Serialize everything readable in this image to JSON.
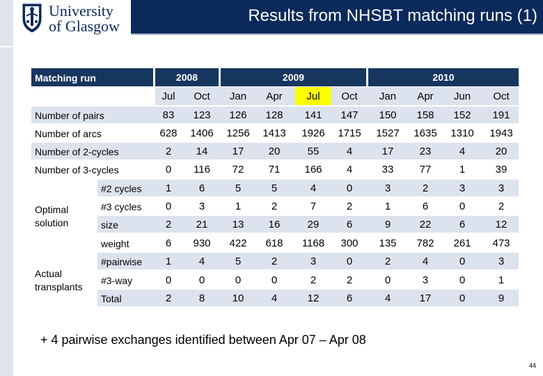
{
  "header": {
    "title": "Results from NHSBT matching runs (1)",
    "logo": {
      "line1": "University",
      "line2": "of Glasgow",
      "icon": "university-crest-icon"
    }
  },
  "table": {
    "corner_label": "Matching run",
    "years": [
      "2008",
      "2009",
      "2010"
    ],
    "months": [
      "Jul",
      "Oct",
      "Jan",
      "Apr",
      "Jul",
      "Oct",
      "Jan",
      "Apr",
      "Jun",
      "Oct"
    ],
    "highlight_month": "Jul (2009)",
    "rows": [
      {
        "label": "Number of pairs",
        "values": [
          "83",
          "123",
          "126",
          "128",
          "141",
          "147",
          "150",
          "158",
          "152",
          "191"
        ]
      },
      {
        "label": "Number of arcs",
        "values": [
          "628",
          "1406",
          "1256",
          "1413",
          "1926",
          "1715",
          "1527",
          "1635",
          "1310",
          "1943"
        ]
      },
      {
        "label": "Number of 2-cycles",
        "values": [
          "2",
          "14",
          "17",
          "20",
          "55",
          "4",
          "17",
          "23",
          "4",
          "20"
        ]
      },
      {
        "label": "Number of 3-cycles",
        "values": [
          "0",
          "116",
          "72",
          "71",
          "166",
          "4",
          "33",
          "77",
          "1",
          "39"
        ]
      },
      {
        "label": "#2 cycles",
        "values": [
          "1",
          "6",
          "5",
          "5",
          "4",
          "0",
          "3",
          "2",
          "3",
          "3"
        ]
      },
      {
        "label": "#3 cycles",
        "values": [
          "0",
          "3",
          "1",
          "2",
          "7",
          "2",
          "1",
          "6",
          "0",
          "2"
        ]
      },
      {
        "label": "size",
        "values": [
          "2",
          "21",
          "13",
          "16",
          "29",
          "6",
          "9",
          "22",
          "6",
          "12"
        ]
      },
      {
        "label": "weight",
        "values": [
          "6",
          "930",
          "422",
          "618",
          "1168",
          "300",
          "135",
          "782",
          "261",
          "473"
        ]
      },
      {
        "label": "#pairwise",
        "values": [
          "1",
          "4",
          "5",
          "2",
          "3",
          "0",
          "2",
          "4",
          "0",
          "3"
        ]
      },
      {
        "label": "#3-way",
        "values": [
          "0",
          "0",
          "0",
          "0",
          "2",
          "2",
          "0",
          "3",
          "0",
          "1"
        ]
      },
      {
        "label": "Total",
        "values": [
          "2",
          "8",
          "10",
          "4",
          "12",
          "6",
          "4",
          "17",
          "0",
          "9"
        ]
      }
    ],
    "groups": {
      "optimal": "Optimal solution",
      "actual": "Actual transplants"
    }
  },
  "footnote": "+ 4 pairwise exchanges identified between Apr 07 – Apr 08",
  "page_number": "44",
  "colors": {
    "header_bg": "#0b2a5b",
    "table_header_bg": "#17365f",
    "band_bg": "#dce3ee",
    "highlight": "#ffff00"
  }
}
